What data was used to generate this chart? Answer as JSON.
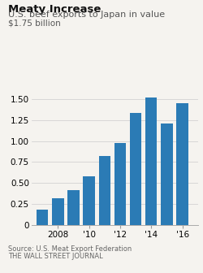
{
  "title": "Meaty Increase",
  "subtitle": "U.S. beef exports to Japan in value",
  "ylabel": "$1.75 billion",
  "years": [
    2007,
    2008,
    2009,
    2010,
    2011,
    2012,
    2013,
    2014,
    2015,
    2016
  ],
  "values": [
    0.19,
    0.32,
    0.42,
    0.58,
    0.82,
    0.98,
    1.33,
    1.52,
    1.21,
    1.45
  ],
  "bar_color": "#2b7bb5",
  "background_color": "#f5f3ef",
  "header_color": "#ffffff",
  "ylim": [
    0,
    1.75
  ],
  "yticks": [
    0,
    0.25,
    0.5,
    0.75,
    1.0,
    1.25,
    1.5
  ],
  "ytick_labels": [
    "0",
    "0.25",
    "0.50",
    "0.75",
    "1.00",
    "1.25",
    "1.50"
  ],
  "xtick_labels": [
    "2008",
    "'10",
    "'12",
    "'14",
    "'16"
  ],
  "xtick_positions": [
    2008,
    2010,
    2012,
    2014,
    2016
  ],
  "source_line1": "Source: U.S. Meat Export Federation",
  "source_line2": "THE WALL STREET JOURNAL",
  "title_fontsize": 9.5,
  "subtitle_fontsize": 8.0,
  "ylabel_fontsize": 7.5,
  "tick_fontsize": 7.5,
  "source_fontsize": 6.0
}
